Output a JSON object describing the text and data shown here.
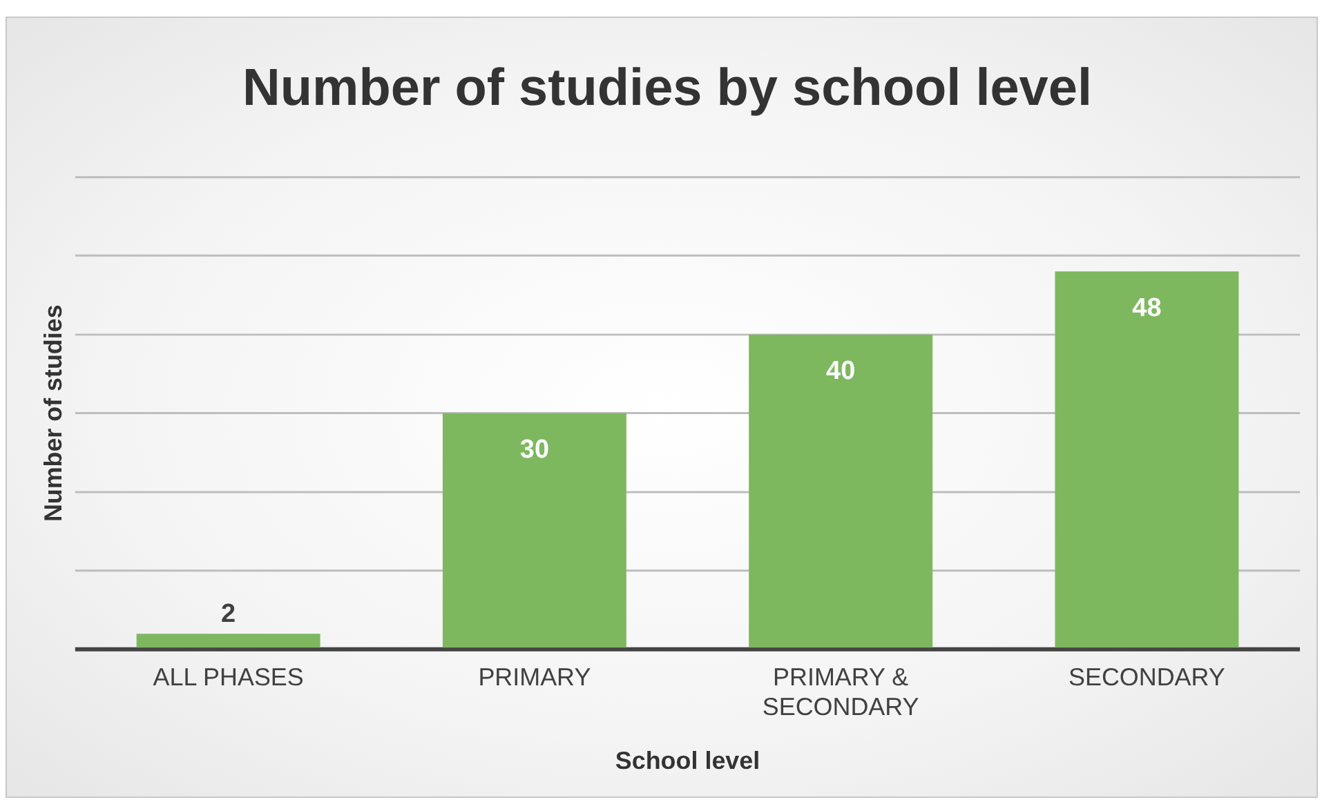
{
  "chart_data": {
    "type": "bar",
    "title": "Number of studies by school level",
    "xlabel": "School level",
    "ylabel": "Number of studies",
    "categories": [
      "ALL PHASES",
      "PRIMARY",
      "PRIMARY & SECONDARY",
      "SECONDARY"
    ],
    "values": [
      2,
      30,
      40,
      48
    ],
    "color": "#7db85f",
    "ylim": [
      0,
      60
    ],
    "yticks": [
      {
        "value": 0,
        "label": null
      },
      {
        "value": 10,
        "label": null
      },
      {
        "value": 20,
        "label": null
      },
      {
        "value": 30,
        "label": null
      },
      {
        "value": 40,
        "label": null
      },
      {
        "value": 50,
        "label": null
      },
      {
        "value": 60,
        "label": null
      }
    ],
    "tick_labels": "x",
    "grid": "y",
    "legend": false,
    "data_labels": true
  }
}
